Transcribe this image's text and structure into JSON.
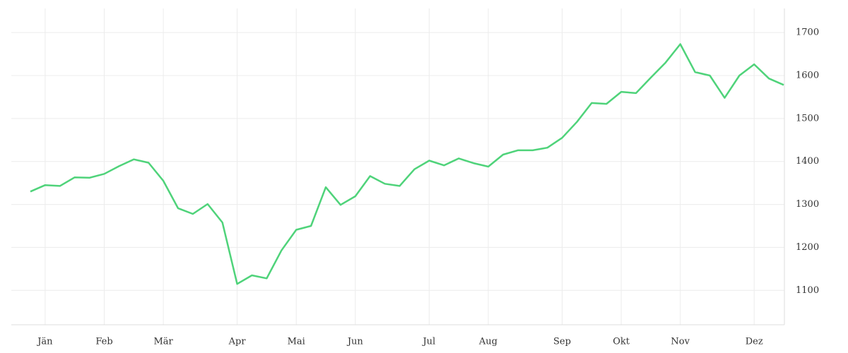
{
  "chart_data": {
    "type": "line",
    "categories": [
      null,
      "Jän",
      null,
      null,
      null,
      "Feb",
      null,
      null,
      null,
      "Mär",
      null,
      null,
      null,
      null,
      "Apr",
      null,
      null,
      null,
      "Mai",
      null,
      null,
      null,
      "Jun",
      null,
      null,
      null,
      null,
      "Jul",
      null,
      null,
      null,
      "Aug",
      null,
      null,
      null,
      null,
      "Sep",
      null,
      null,
      null,
      "Okt",
      null,
      null,
      null,
      "Nov",
      null,
      null,
      null,
      null,
      "Dez",
      null,
      null
    ],
    "series": [
      {
        "color": "#4fd37a",
        "values": [
          1330,
          1345,
          1343,
          1363,
          1362,
          1371,
          1389,
          1405,
          1397,
          1355,
          1291,
          1278,
          1301,
          1258,
          1115,
          1135,
          1128,
          1193,
          1241,
          1250,
          1340,
          1299,
          1319,
          1366,
          1348,
          1343,
          1382,
          1402,
          1391,
          1407,
          1396,
          1388,
          1416,
          1426,
          1426,
          1432,
          1455,
          1492,
          1536,
          1534,
          1562,
          1559,
          1595,
          1630,
          1673,
          1608,
          1600,
          1548,
          1600,
          1626,
          1593,
          1578
        ]
      }
    ],
    "ylim": [
      1020,
      1756
    ],
    "yticks": [
      1100,
      1200,
      1300,
      1400,
      1500,
      1600,
      1700
    ],
    "grid": true
  }
}
